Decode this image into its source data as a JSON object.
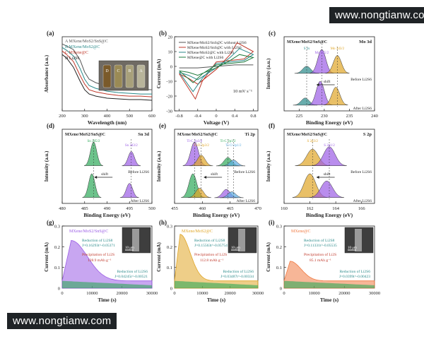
{
  "watermark_top": "www.nongtianw.com",
  "watermark_bottom": "www.nongtianw.com",
  "chart_data": [
    {
      "panel": "(a)",
      "type": "line",
      "xlabel": "Wavelength (nm)",
      "ylabel": "Absorbance (a.u.)",
      "xlim": [
        200,
        600
      ],
      "xticks": [
        200,
        300,
        400,
        500,
        600
      ],
      "series": [
        {
          "name": "A MXene/MoS2/SnS@C",
          "color": "#555555",
          "x": [
            200,
            220,
            250,
            280,
            300,
            320,
            350,
            400,
            450,
            500,
            550,
            600
          ],
          "y": [
            0.95,
            0.92,
            0.87,
            0.72,
            0.55,
            0.45,
            0.4,
            0.35,
            0.33,
            0.32,
            0.31,
            0.3
          ]
        },
        {
          "name": "B MXene/MoS2@C",
          "color": "#2a8a8a",
          "x": [
            200,
            220,
            250,
            280,
            300,
            320,
            350,
            400,
            450,
            500,
            550,
            600
          ],
          "y": [
            0.9,
            0.86,
            0.78,
            0.6,
            0.45,
            0.36,
            0.32,
            0.28,
            0.26,
            0.25,
            0.24,
            0.24
          ]
        },
        {
          "name": "C MXene@C",
          "color": "#c0392b",
          "x": [
            200,
            220,
            250,
            280,
            300,
            320,
            350,
            400,
            450,
            500,
            550,
            600
          ],
          "y": [
            0.85,
            0.8,
            0.7,
            0.5,
            0.38,
            0.3,
            0.27,
            0.24,
            0.22,
            0.21,
            0.21,
            0.2
          ]
        },
        {
          "name": "D Li2S6",
          "color": "#222222",
          "x": [
            200,
            220,
            250,
            280,
            300,
            320,
            350,
            400,
            450,
            500,
            550,
            600
          ],
          "y": [
            0.8,
            0.75,
            0.62,
            0.42,
            0.3,
            0.24,
            0.21,
            0.18,
            0.17,
            0.16,
            0.16,
            0.15
          ]
        }
      ],
      "inset_labels": [
        "D",
        "C",
        "B",
        "A"
      ]
    },
    {
      "panel": "(b)",
      "type": "line",
      "xlabel": "Voltage (V)",
      "ylabel": "Current (mA)",
      "xlim": [
        -0.9,
        0.9
      ],
      "ylim": [
        -30,
        20
      ],
      "xticks": [
        -0.8,
        -0.4,
        0.0,
        0.4,
        0.8
      ],
      "yticks": [
        -30,
        -20,
        -10,
        0,
        10,
        20
      ],
      "annotation": "10 mV s⁻¹",
      "series": [
        {
          "name": "MXene/MoS2/SnS@C without Li2S6",
          "color": "#555555",
          "x": [
            -0.8,
            -0.4,
            0,
            0.4,
            0.8,
            0.4,
            0,
            -0.4,
            -0.8
          ],
          "y": [
            -1,
            -1,
            0,
            1,
            1,
            1,
            0,
            -1,
            -1
          ]
        },
        {
          "name": "MXene/MoS2/SnS@C with Li2S6",
          "color": "#c0392b",
          "x": [
            -0.8,
            -0.6,
            -0.4,
            0,
            0.3,
            0.45,
            0.8,
            0.6,
            0.3,
            0,
            -0.3,
            -0.45,
            -0.8
          ],
          "y": [
            -5,
            -8,
            -12,
            -2,
            8,
            16,
            10,
            5,
            4,
            3,
            -10,
            -22,
            -5
          ]
        },
        {
          "name": "MXene/MoS2@C with Li2S6",
          "color": "#2a8a8a",
          "x": [
            -0.8,
            -0.6,
            -0.4,
            0,
            0.3,
            0.5,
            0.8,
            0.6,
            0.3,
            0,
            -0.3,
            -0.5,
            -0.8
          ],
          "y": [
            -4,
            -6,
            -9,
            -1,
            6,
            12,
            8,
            4,
            3,
            2,
            -8,
            -17,
            -4
          ]
        },
        {
          "name": "MXene@C with Li2S6",
          "color": "#1e7b3c",
          "x": [
            -0.8,
            -0.6,
            -0.4,
            0,
            0.3,
            0.5,
            0.8,
            0.6,
            0.3,
            0,
            -0.3,
            -0.5,
            -0.8
          ],
          "y": [
            -3,
            -4,
            -6,
            -1,
            4,
            8,
            6,
            3,
            2,
            1,
            -5,
            -11,
            -3
          ]
        }
      ]
    },
    {
      "panel": "(c)",
      "type": "line",
      "title": "Mo 3d",
      "sample": "MXene/MoS2/SnS@C",
      "xlabel": "Binding Energy (eV)",
      "ylabel": "Intensity (a.u.)",
      "xlim": [
        222,
        240
      ],
      "xticks": [
        225,
        230,
        235,
        240
      ],
      "peak_labels": [
        "S 2s",
        "Mo 3d5/2",
        "Mo 3d3/2"
      ],
      "annotations": [
        "Before Li2S6",
        "After Li2S6",
        "shift"
      ],
      "before_peaks": [
        {
          "center": 226.5,
          "height": 0.3,
          "color": "#2a8a8a"
        },
        {
          "center": 229.5,
          "height": 1.0,
          "color": "#9b5de5"
        },
        {
          "center": 232.6,
          "height": 0.75,
          "color": "#e0a526"
        }
      ],
      "after_peaks": [
        {
          "center": 226.2,
          "height": 0.3,
          "color": "#2a8a8a"
        },
        {
          "center": 229.2,
          "height": 1.0,
          "color": "#9b5de5"
        },
        {
          "center": 232.3,
          "height": 0.75,
          "color": "#e0a526"
        }
      ]
    },
    {
      "panel": "(d)",
      "type": "line",
      "title": "Sn 3d",
      "sample": "MXene/MoS2/SnS@C",
      "xlabel": "Binding Energy (eV)",
      "ylabel": "Intensity (a.u.)",
      "xlim": [
        480,
        500
      ],
      "xticks": [
        480,
        485,
        490,
        495,
        500
      ],
      "peak_labels": [
        "Sn 3d5/2",
        "Sn 3d3/2"
      ],
      "annotations": [
        "Before Li2S6",
        "After Li2S6",
        "shift"
      ],
      "before_peaks": [
        {
          "center": 487.0,
          "height": 1.0,
          "color": "#2eaa5a"
        },
        {
          "center": 495.4,
          "height": 0.6,
          "color": "#9b5de5"
        }
      ],
      "after_peaks": [
        {
          "center": 486.6,
          "height": 1.0,
          "color": "#2eaa5a"
        },
        {
          "center": 495.0,
          "height": 0.6,
          "color": "#9b5de5"
        }
      ]
    },
    {
      "panel": "(e)",
      "type": "line",
      "title": "Ti 2p",
      "sample": "MXene/MoS2/SnS@C",
      "xlabel": "Binding Energy (eV)",
      "ylabel": "Intensity (a.u.)",
      "xlim": [
        455,
        470
      ],
      "xticks": [
        455,
        460,
        465,
        470
      ],
      "peak_labels": [
        "Ti-C 2p3/2",
        "Ti-O 2p3/2",
        "Ti-C 2p1/2",
        "Ti-O 2p1/2"
      ],
      "annotations": [
        "Before Li2S6",
        "After Li2S6",
        "shift"
      ],
      "before_peaks": [
        {
          "center": 458.6,
          "height": 1.0,
          "color": "#9b5de5"
        },
        {
          "center": 459.8,
          "height": 0.45,
          "color": "#e0a526"
        },
        {
          "center": 464.6,
          "height": 0.35,
          "color": "#2eaa5a"
        },
        {
          "center": 465.6,
          "height": 0.25,
          "color": "#5dade2"
        }
      ],
      "after_peaks": [
        {
          "center": 458.3,
          "height": 1.0,
          "color": "#2eaa5a"
        },
        {
          "center": 459.5,
          "height": 0.4,
          "color": "#e0a526"
        },
        {
          "center": 464.3,
          "height": 0.35,
          "color": "#9b5de5"
        },
        {
          "center": 465.3,
          "height": 0.25,
          "color": "#5dade2"
        }
      ]
    },
    {
      "panel": "(f)",
      "type": "line",
      "title": "S 2p",
      "sample": "MXene/MoS2/SnS@C",
      "xlabel": "Binding Energy (eV)",
      "ylabel": "Intensity (a.u.)",
      "xlim": [
        160,
        167
      ],
      "xticks": [
        160,
        162,
        164,
        166
      ],
      "peak_labels": [
        "S 2p3/2",
        "S 2p1/2"
      ],
      "annotations": [
        "Before Li2S6",
        "After Li2S6",
        "shift"
      ],
      "before_peaks": [
        {
          "center": 162.2,
          "height": 0.7,
          "color": "#e0a526"
        },
        {
          "center": 163.5,
          "height": 0.8,
          "color": "#9b5de5"
        }
      ],
      "after_peaks": [
        {
          "center": 162.0,
          "height": 1.0,
          "color": "#e0a526"
        },
        {
          "center": 163.3,
          "height": 0.7,
          "color": "#9b5de5"
        }
      ]
    },
    {
      "panel": "(g)",
      "type": "area",
      "label": "MXene/MoS2/SnS@C",
      "xlabel": "Time (s)",
      "ylabel": "Current (mA)",
      "xlim": [
        0,
        30000
      ],
      "ylim": [
        0,
        0.3
      ],
      "xticks": [
        0,
        10000,
        20000,
        30000
      ],
      "yticks": [
        0.0,
        0.1,
        0.2,
        0.3
      ],
      "color": "#9b5de5",
      "peak": 0.23,
      "peak_time": 3000,
      "annotations": [
        "Reduction of Li2S8",
        "J=0.16293t^-0.05371",
        "Precipitation of Li2S",
        "128.9 mAh g⁻¹",
        "Reduction of Li2S6",
        "J=0.04245t^-0.00521"
      ],
      "scalebar": "10 μm"
    },
    {
      "panel": "(h)",
      "type": "area",
      "label": "MXene/MoS2@C",
      "xlabel": "Time (s)",
      "ylabel": "Current (mA)",
      "xlim": [
        0,
        30000
      ],
      "ylim": [
        0,
        0.3
      ],
      "xticks": [
        0,
        10000,
        20000,
        30000
      ],
      "yticks": [
        0.0,
        0.1,
        0.2,
        0.3
      ],
      "color": "#e0a526",
      "peak": 0.26,
      "peak_time": 2000,
      "annotations": [
        "Reduction of Li2S8",
        "J=0.15563t^-0.05754",
        "Precipitation of Li2S",
        "112.8 mAh g⁻¹",
        "Reduction of Li2S6",
        "J=0.03487t^-0.00334"
      ],
      "scalebar": "10 μm"
    },
    {
      "panel": "(i)",
      "type": "area",
      "label": "MXene@C",
      "xlabel": "Time (s)",
      "ylabel": "Current (mA)",
      "xlim": [
        0,
        30000
      ],
      "ylim": [
        0,
        0.3
      ],
      "xticks": [
        0,
        10000,
        20000,
        30000
      ],
      "yticks": [
        0.0,
        0.1,
        0.2,
        0.3
      ],
      "color": "#f07a42",
      "peak": 0.13,
      "peak_time": 2000,
      "annotations": [
        "Reduction of Li2S8",
        "J=0.11331t^-0.05535",
        "Precipitation of Li2S",
        "85.1 mAh g⁻¹",
        "Reduction of Li2S6",
        "J=0.0399t^-0.00423"
      ],
      "scalebar": "10 μm"
    }
  ]
}
